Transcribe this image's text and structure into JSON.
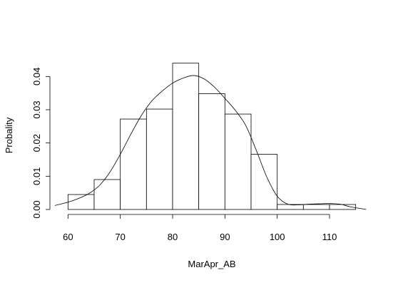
{
  "chart_data": {
    "type": "histogram",
    "title": "",
    "xlabel": "MarApr_AB",
    "ylabel": "Probality",
    "xlim": [
      57.5,
      117.5
    ],
    "ylim": [
      0,
      0.045
    ],
    "x_ticks": [
      "60",
      "70",
      "80",
      "90",
      "100",
      "110"
    ],
    "y_ticks": [
      "0.00",
      "0.01",
      "0.02",
      "0.03",
      "0.04"
    ],
    "grid": false,
    "legend": "none",
    "bins": [
      {
        "start": 60,
        "end": 65,
        "density": 0.0045
      },
      {
        "start": 65,
        "end": 70,
        "density": 0.009
      },
      {
        "start": 70,
        "end": 75,
        "density": 0.0272
      },
      {
        "start": 75,
        "end": 80,
        "density": 0.0302
      },
      {
        "start": 80,
        "end": 85,
        "density": 0.044
      },
      {
        "start": 85,
        "end": 90,
        "density": 0.0348
      },
      {
        "start": 90,
        "end": 95,
        "density": 0.0287
      },
      {
        "start": 95,
        "end": 100,
        "density": 0.0166
      },
      {
        "start": 100,
        "end": 105,
        "density": 0.0015
      },
      {
        "start": 105,
        "end": 110,
        "density": 0.0015
      },
      {
        "start": 110,
        "end": 115,
        "density": 0.0015
      }
    ],
    "density_curve": {
      "x": [
        57.5,
        60,
        62,
        64,
        66,
        68,
        70,
        72,
        74,
        76,
        78,
        80,
        82,
        84,
        86,
        88,
        90,
        92,
        94,
        96,
        98,
        100,
        102,
        104,
        106,
        108,
        110,
        112,
        114,
        117
      ],
      "y": [
        0.0012,
        0.0022,
        0.0033,
        0.0048,
        0.0072,
        0.0112,
        0.0166,
        0.0226,
        0.0282,
        0.0326,
        0.0356,
        0.038,
        0.0395,
        0.0403,
        0.0393,
        0.0368,
        0.0334,
        0.0298,
        0.0252,
        0.0178,
        0.0098,
        0.004,
        0.0016,
        0.0014,
        0.0016,
        0.0017,
        0.0018,
        0.0016,
        0.0008,
        0.0
      ]
    }
  }
}
